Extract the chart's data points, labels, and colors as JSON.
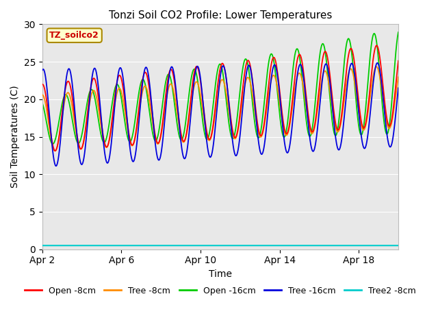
{
  "title": "Tonzi Soil CO2 Profile: Lower Temperatures",
  "xlabel": "Time",
  "ylabel": "Soil Temperatures (C)",
  "ylim": [
    0,
    30
  ],
  "xlim": [
    0,
    18
  ],
  "xtick_positions": [
    0,
    4,
    8,
    12,
    16
  ],
  "xtick_labels": [
    "Apr 2",
    "Apr 6",
    "Apr 10",
    "Apr 14",
    "Apr 18"
  ],
  "ytick_positions": [
    0,
    5,
    10,
    15,
    20,
    25,
    30
  ],
  "label_box_text": "TZ_soilco2",
  "background_color": "#e8e8e8",
  "figsize": [
    6.4,
    4.8
  ],
  "dpi": 100,
  "series": {
    "open_8cm": {
      "label": "Open -8cm",
      "color": "#ff0000",
      "lw": 1.3
    },
    "tree_8cm": {
      "label": "Tree -8cm",
      "color": "#ff8c00",
      "lw": 1.3
    },
    "open_16cm": {
      "label": "Open -16cm",
      "color": "#00cc00",
      "lw": 1.3
    },
    "tree_16cm": {
      "label": "Tree -16cm",
      "color": "#0000dd",
      "lw": 1.3
    },
    "tree2_8cm": {
      "label": "Tree2 -8cm",
      "color": "#00cccc",
      "lw": 1.5,
      "flat_val": 0.5
    }
  },
  "legend_colors": [
    "#ff0000",
    "#ff8c00",
    "#00cc00",
    "#0000dd",
    "#00cccc"
  ],
  "legend_labels": [
    "Open -8cm",
    "Tree -8cm",
    "Open -16cm",
    "Tree -16cm",
    "Tree2 -8cm"
  ]
}
